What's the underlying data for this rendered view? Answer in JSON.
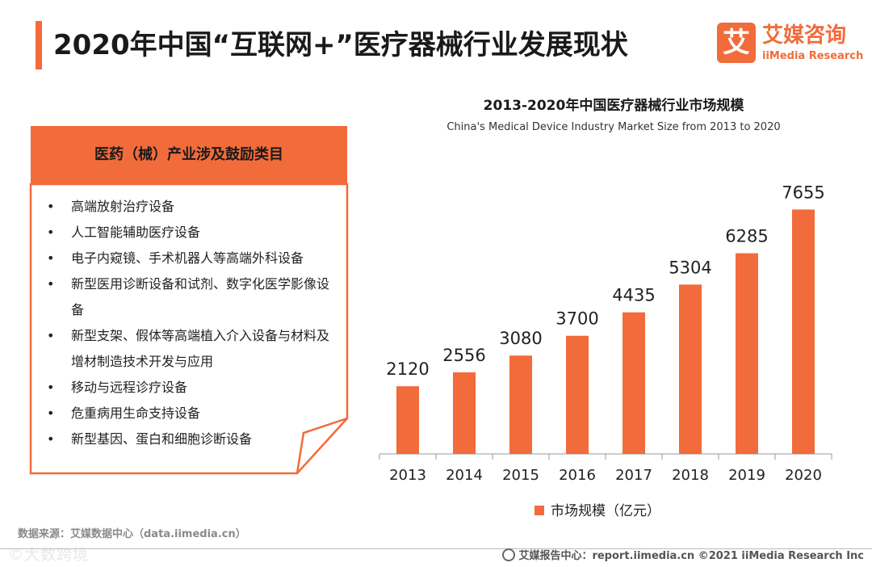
{
  "page": {
    "title": "2020年中国“互联网+”医疗器械行业发展现状",
    "logo_mark": "艾",
    "logo_cn": "艾媒咨询",
    "logo_en": "iiMedia Research"
  },
  "panel": {
    "header": "医药（械）产业涉及鼓励类目",
    "bullet": "•",
    "items": [
      "高端放射治疗设备",
      "人工智能辅助医疗设备",
      "电子内窥镜、手术机器人等高端外科设备",
      "新型医用诊断设备和试剂、数字化医学影像设备",
      "新型支架、假体等高端植入介入设备与材料及增材制造技术开发与应用",
      "移动与远程诊疗设备",
      "危重病用生命支持设备",
      "新型基因、蛋白和细胞诊断设备"
    ]
  },
  "chart_data": {
    "type": "bar",
    "title": "2013-2020年中国医疗器械行业市场规模",
    "subtitle": "China's Medical Device Industry Market Size from 2013 to 2020",
    "categories": [
      "2013",
      "2014",
      "2015",
      "2016",
      "2017",
      "2018",
      "2019",
      "2020"
    ],
    "series": [
      {
        "name": "市场规模（亿元）",
        "values": [
          2120,
          2556,
          3080,
          3700,
          4435,
          5304,
          6285,
          7655
        ]
      }
    ],
    "ylim": [
      0,
      8500
    ],
    "legend": "bottom",
    "grid": false,
    "colors": {
      "bar": "#f26b3a"
    }
  },
  "footer": {
    "source": "数据来源：艾媒数据中心（data.iimedia.cn）",
    "report": "艾媒报告中心：report.iimedia.cn ©2021 iiMedia Research Inc",
    "watermark": "©大数跨境"
  }
}
